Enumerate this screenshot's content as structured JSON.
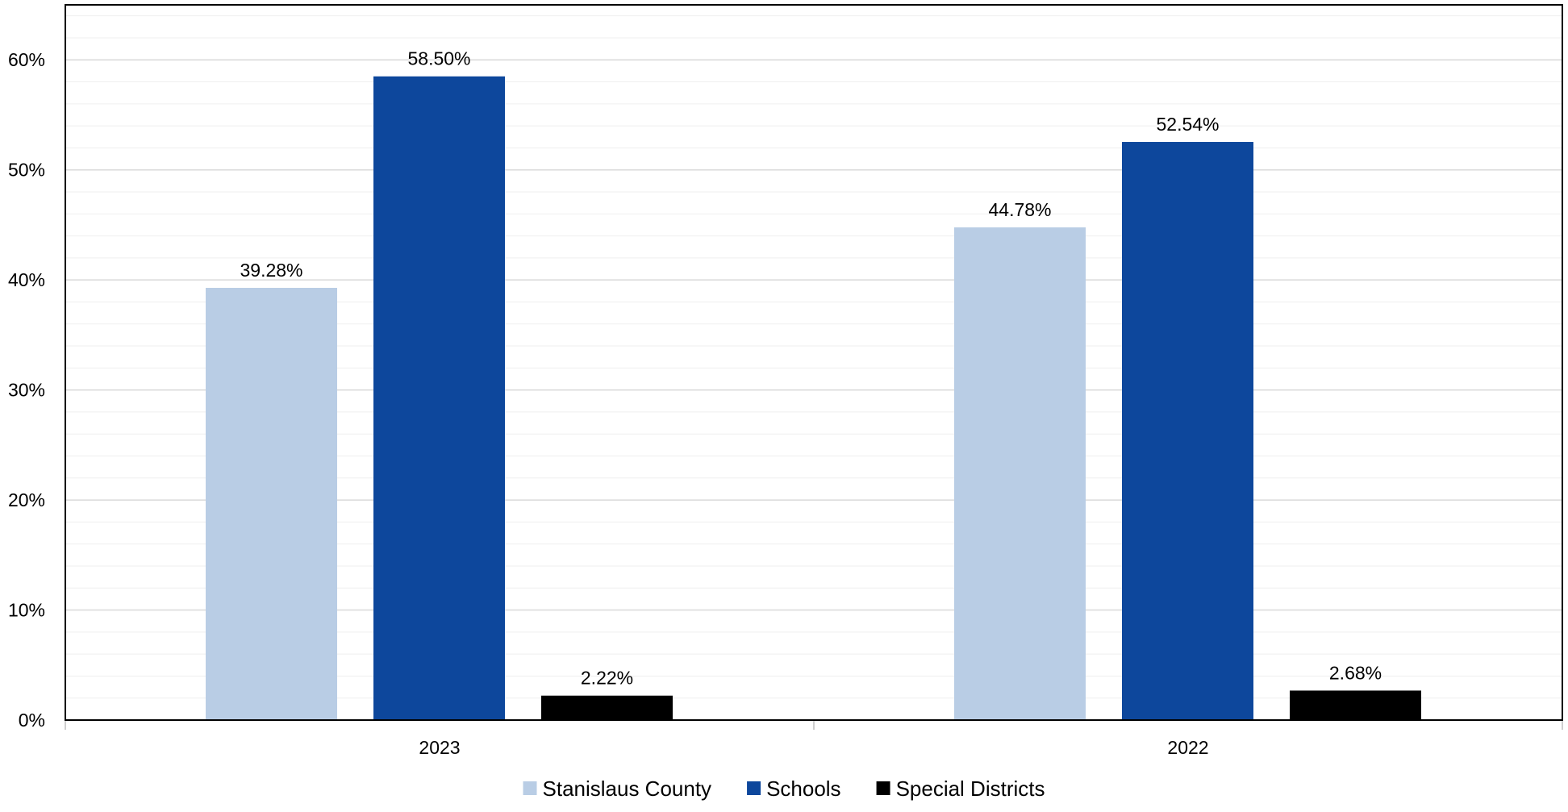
{
  "chart_data": {
    "type": "bar",
    "title": "",
    "xlabel": "",
    "ylabel": "",
    "categories": [
      "2023",
      "2022"
    ],
    "series": [
      {
        "name": "Stanislaus County",
        "values": [
          39.28,
          44.78
        ],
        "labels": [
          "39.28%",
          "44.78%"
        ],
        "color": "#b9cde5"
      },
      {
        "name": "Schools",
        "values": [
          58.5,
          52.54
        ],
        "labels": [
          "58.50%",
          "52.54%"
        ],
        "color": "#0d479c"
      },
      {
        "name": "Special Districts",
        "values": [
          2.22,
          2.68
        ],
        "labels": [
          "2.22%",
          "2.68%"
        ],
        "color": "#000000"
      }
    ],
    "ylim": [
      0,
      65
    ],
    "yticks": [
      {
        "value": 0,
        "label": "0%"
      },
      {
        "value": 10,
        "label": "10%"
      },
      {
        "value": 20,
        "label": "20%"
      },
      {
        "value": 30,
        "label": "30%"
      },
      {
        "value": 40,
        "label": "40%"
      },
      {
        "value": 50,
        "label": "50%"
      },
      {
        "value": 60,
        "label": "60%"
      }
    ],
    "minor_grid_step": 2,
    "grid": true,
    "legend_position": "bottom",
    "colors": {
      "major_grid": "#d9d9d9",
      "minor_grid": "#efefef",
      "axis": "#000000",
      "frame": "#000000"
    }
  }
}
